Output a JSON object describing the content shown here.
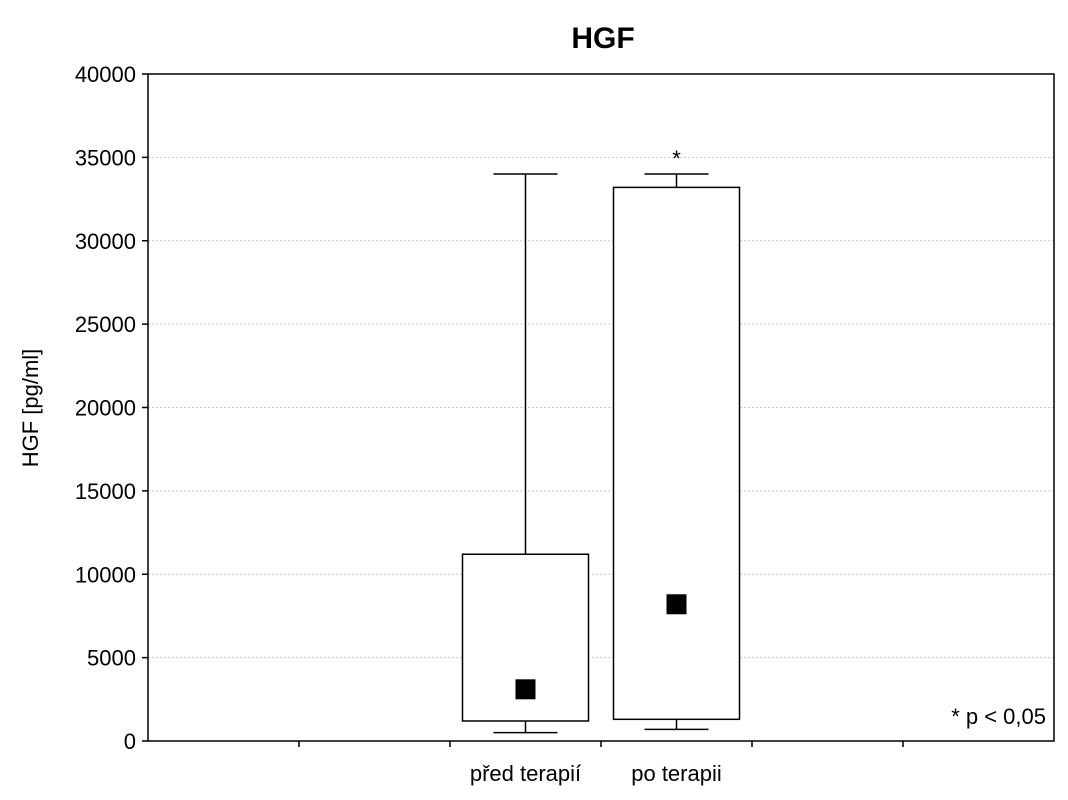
{
  "chart_data": {
    "type": "box",
    "title": "HGF",
    "ylabel": "HGF [pg/ml]",
    "xlabel": "",
    "ylim": [
      0,
      40000
    ],
    "yticks": [
      0,
      5000,
      10000,
      15000,
      20000,
      25000,
      30000,
      35000,
      40000
    ],
    "grid": true,
    "slots": 6,
    "categories": [
      {
        "label": "před terapií",
        "slot": 2,
        "whisker_low": 500,
        "q1": 1200,
        "median": 3100,
        "q3": 11200,
        "whisker_high": 34000,
        "marker": ""
      },
      {
        "label": "po terapii",
        "slot": 3,
        "whisker_low": 700,
        "q1": 1300,
        "median": 8200,
        "q3": 33200,
        "whisker_high": 34000,
        "marker": "*"
      }
    ],
    "annotation": "* p < 0,05",
    "annotation_position": "bottom-right"
  }
}
